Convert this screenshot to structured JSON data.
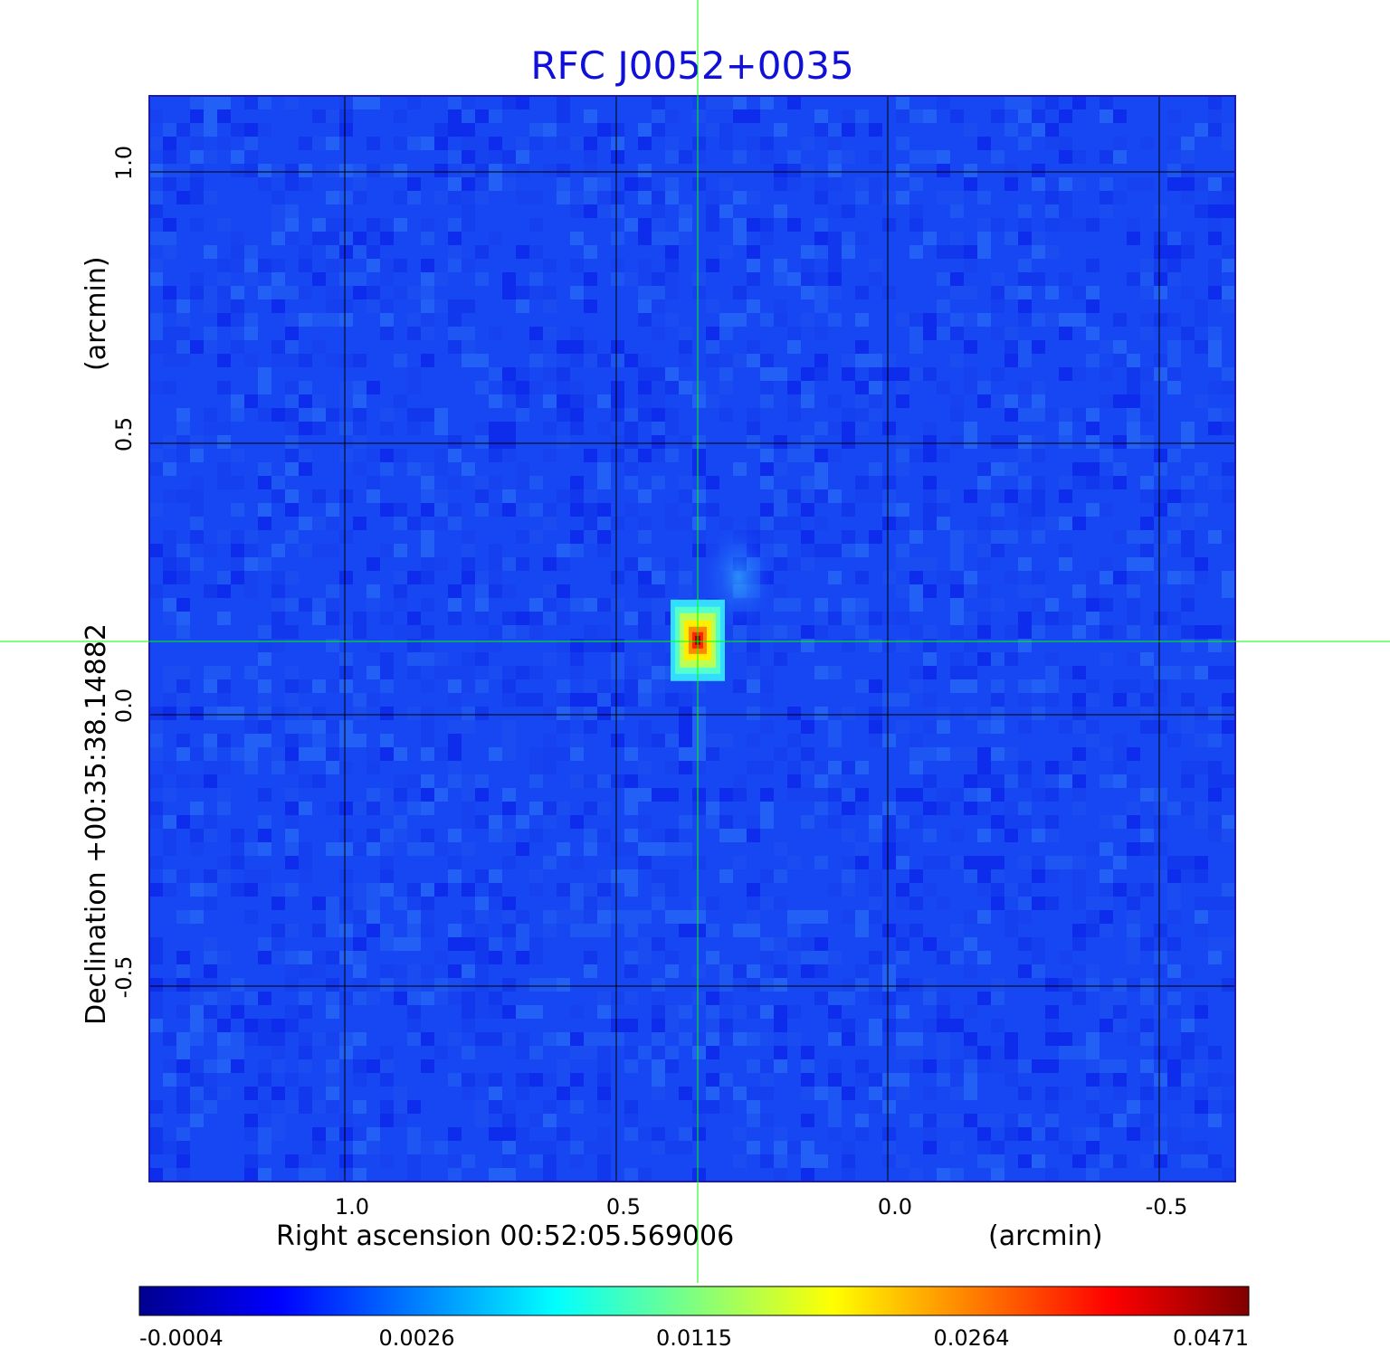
{
  "chart_data": {
    "type": "heatmap",
    "title": "RFC J0052+0035",
    "title_color": "#1010d8",
    "xlabel": "Right ascension  00:52:05.569006",
    "xunit": "(arcmin)",
    "ylabel": "Declination  +00:35:38.14882",
    "yunit": "(arcmin)",
    "xlim": [
      1.36,
      -0.64
    ],
    "ylim": [
      -0.86,
      1.14
    ],
    "x_ticks": [
      1.0,
      0.5,
      0.0,
      -0.5
    ],
    "x_tick_labels": [
      "1.0",
      "0.5",
      "0.0",
      "-0.5"
    ],
    "y_ticks": [
      1.0,
      0.5,
      0.0,
      -0.5
    ],
    "y_tick_labels": [
      "1.0",
      "0.5",
      "0.0",
      "-0.5"
    ],
    "grid": true,
    "grid_color": "#000000",
    "crosshair": {
      "x": 0.35,
      "y": 0.135,
      "color": "#00ff00"
    },
    "source": {
      "x": 0.35,
      "y": 0.137,
      "peak": 0.0471
    },
    "colormap": "jet",
    "colorbar": {
      "ticks": [
        "-0.0004",
        "0.0026",
        "0.0115",
        "0.0264",
        "0.0471"
      ],
      "placement": "bottom"
    }
  }
}
